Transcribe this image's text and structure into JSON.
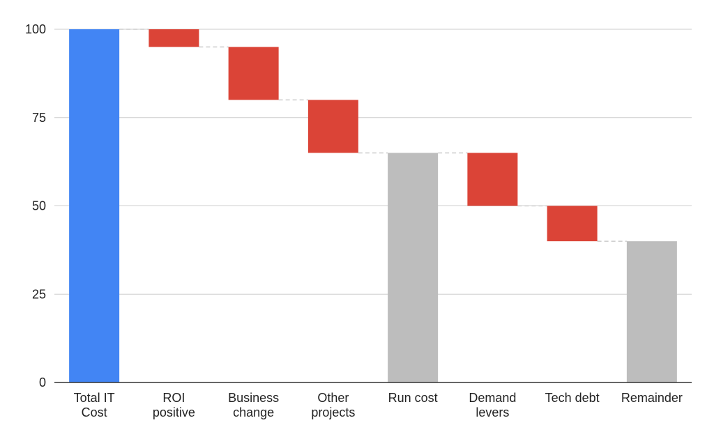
{
  "chart_data": {
    "type": "bar",
    "subtype": "waterfall",
    "title": "",
    "xlabel": "",
    "ylabel": "",
    "ylim": [
      0,
      100
    ],
    "yticks": [
      0,
      25,
      50,
      75,
      100
    ],
    "grid": true,
    "legend": "none",
    "categories": [
      [
        "Total IT",
        "Cost"
      ],
      [
        "ROI",
        "positive"
      ],
      [
        "Business",
        "change"
      ],
      [
        "Other",
        "projects"
      ],
      [
        "Run cost"
      ],
      [
        "Demand",
        "levers"
      ],
      [
        "Tech debt"
      ],
      [
        "Remainder"
      ]
    ],
    "bars": [
      {
        "kind": "total",
        "start": 0,
        "end": 100
      },
      {
        "kind": "decrease",
        "start": 100,
        "end": 95
      },
      {
        "kind": "decrease",
        "start": 95,
        "end": 80
      },
      {
        "kind": "decrease",
        "start": 80,
        "end": 65
      },
      {
        "kind": "subtotal",
        "start": 0,
        "end": 65
      },
      {
        "kind": "decrease",
        "start": 65,
        "end": 50
      },
      {
        "kind": "decrease",
        "start": 50,
        "end": 40
      },
      {
        "kind": "subtotal",
        "start": 0,
        "end": 40
      }
    ],
    "colors": {
      "total": "#4285F4",
      "decrease": "#DB4437",
      "subtotal": "#BDBDBD",
      "grid": "#CCCCCC",
      "axis": "#333333",
      "connector": "#CCCCCC"
    }
  }
}
